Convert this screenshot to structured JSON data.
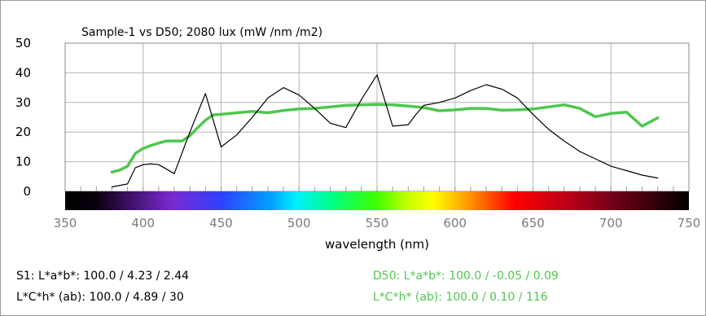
{
  "chart_data": {
    "type": "line",
    "title": "Sample-1 vs D50; 2080 lux (mW /nm /m2)",
    "xlabel": "wavelength (nm)",
    "ylabel": "",
    "xlim": [
      350,
      750
    ],
    "ylim": [
      0,
      50
    ],
    "x_ticks": [
      "350",
      "400",
      "450",
      "500",
      "550",
      "600",
      "650",
      "700",
      "750"
    ],
    "y_ticks": [
      "0",
      "10",
      "20",
      "30",
      "40",
      "50"
    ],
    "grid": true,
    "series": [
      {
        "name": "S1",
        "color": "#000000",
        "x": [
          380,
          390,
          395,
          400,
          405,
          410,
          420,
          430,
          440,
          450,
          460,
          470,
          480,
          490,
          500,
          510,
          520,
          530,
          540,
          550,
          560,
          570,
          575,
          580,
          590,
          600,
          610,
          620,
          630,
          640,
          650,
          660,
          670,
          680,
          690,
          700,
          710,
          720,
          730
        ],
        "y": [
          1.5,
          2.5,
          8,
          9,
          9.3,
          9,
          6,
          20,
          33,
          15,
          19,
          25,
          31.5,
          35,
          32.5,
          28,
          23,
          21.5,
          31,
          39.3,
          22,
          22.5,
          26,
          29,
          30,
          31.5,
          34,
          36,
          34.5,
          31.5,
          26,
          21,
          17,
          13.5,
          11,
          8.5,
          7,
          5.5,
          4.5
        ]
      },
      {
        "name": "D50",
        "color": "#4ec74e",
        "x": [
          380,
          385,
          390,
          395,
          400,
          405,
          410,
          415,
          420,
          425,
          430,
          435,
          440,
          445,
          450,
          460,
          470,
          480,
          490,
          500,
          510,
          520,
          530,
          540,
          550,
          560,
          570,
          580,
          590,
          600,
          610,
          620,
          630,
          640,
          650,
          660,
          670,
          680,
          690,
          700,
          710,
          720,
          730
        ],
        "y": [
          6.5,
          7.2,
          8.5,
          12.8,
          14.5,
          15.5,
          16.3,
          17,
          17,
          17,
          18.8,
          21.5,
          24,
          25.8,
          26,
          26.5,
          27,
          26.5,
          27.3,
          27.8,
          28,
          28.5,
          29,
          29.2,
          29.3,
          29.2,
          28.8,
          28.3,
          27.2,
          27.5,
          28,
          28,
          27.4,
          27.5,
          27.8,
          28.5,
          29.2,
          28,
          25.2,
          26.3,
          26.7,
          22,
          24.8
        ]
      }
    ]
  },
  "info": {
    "s1_lab": "S1: L*a*b*: 100.0 / 4.23 / 2.44",
    "s1_lch": "L*C*h* (ab): 100.0 / 4.89 / 30",
    "d50_lab": "D50: L*a*b*: 100.0 / -0.05 / 0.09",
    "d50_lch": "L*C*h* (ab): 100.0 / 0.10 / 116",
    "s1_color": "#000000",
    "d50_color": "#4ec74e"
  }
}
